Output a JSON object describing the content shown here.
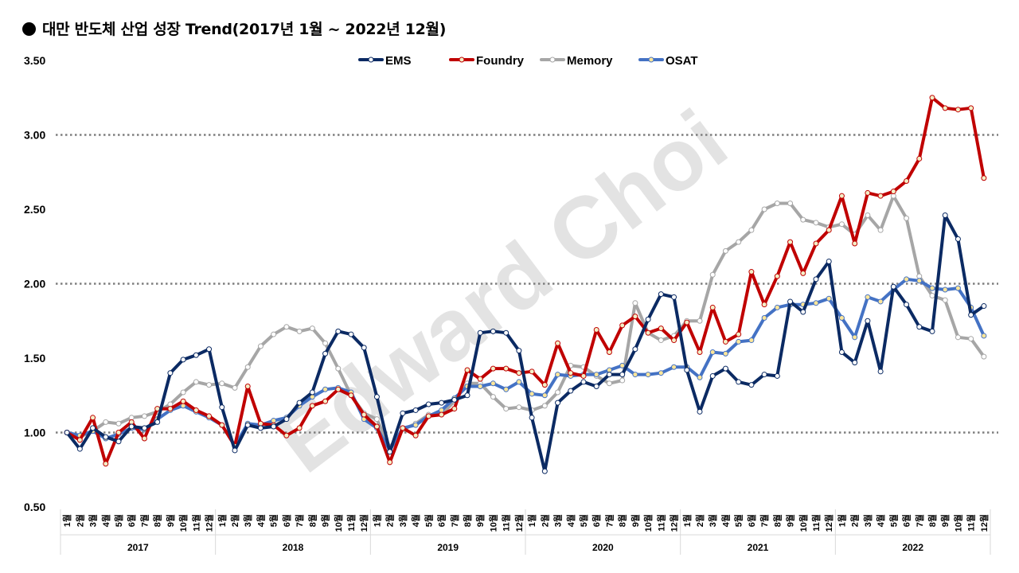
{
  "title": "대만 반도체 산업 성장 Trend(2017년 1월 ~ 2022년 12월)",
  "watermark": "Edward Choi",
  "chart_data": {
    "type": "line",
    "title": "대만 반도체 산업 성장 Trend(2017년 1월 ~ 2022년 12월)",
    "ylim": [
      0.5,
      3.5
    ],
    "yticks": [
      "0.50",
      "1.00",
      "1.50",
      "2.00",
      "2.50",
      "3.00",
      "3.50"
    ],
    "grid": "dotted at 1.00, 2.00, 3.00",
    "legend_position": "top-center",
    "month_unit": "월",
    "months": [
      "1",
      "2",
      "3",
      "4",
      "5",
      "6",
      "7",
      "8",
      "9",
      "10",
      "11",
      "12"
    ],
    "years": [
      "2017",
      "2018",
      "2019",
      "2020",
      "2021",
      "2022"
    ],
    "series": [
      {
        "name": "EMS",
        "color": "#0b2a63",
        "marker": "#ffffff",
        "values": [
          1.0,
          0.89,
          1.03,
          0.97,
          0.94,
          1.04,
          1.03,
          1.07,
          1.4,
          1.49,
          1.52,
          1.56,
          1.17,
          0.88,
          1.05,
          1.03,
          1.04,
          1.09,
          1.2,
          1.27,
          1.53,
          1.68,
          1.66,
          1.57,
          1.24,
          0.87,
          1.13,
          1.15,
          1.19,
          1.2,
          1.22,
          1.25,
          1.67,
          1.68,
          1.67,
          1.55,
          1.1,
          0.74,
          1.2,
          1.28,
          1.34,
          1.31,
          1.39,
          1.39,
          1.56,
          1.76,
          1.93,
          1.91,
          1.42,
          1.14,
          1.38,
          1.43,
          1.34,
          1.32,
          1.39,
          1.38,
          1.88,
          1.81,
          2.03,
          2.15,
          1.54,
          1.47,
          1.75,
          1.41,
          1.98,
          1.86,
          1.71,
          1.68,
          2.46,
          2.3,
          1.79,
          1.85
        ]
      },
      {
        "name": "Foundry",
        "color": "#c00000",
        "marker": "#f3efc8",
        "values": [
          1.0,
          0.95,
          1.1,
          0.79,
          1.0,
          1.07,
          0.96,
          1.16,
          1.16,
          1.21,
          1.15,
          1.11,
          1.05,
          0.91,
          1.31,
          1.06,
          1.05,
          0.98,
          1.03,
          1.18,
          1.21,
          1.29,
          1.25,
          1.12,
          1.04,
          0.8,
          1.03,
          0.98,
          1.11,
          1.12,
          1.16,
          1.42,
          1.36,
          1.43,
          1.43,
          1.4,
          1.41,
          1.32,
          1.6,
          1.4,
          1.38,
          1.69,
          1.54,
          1.72,
          1.78,
          1.67,
          1.7,
          1.62,
          1.74,
          1.54,
          1.84,
          1.61,
          1.66,
          2.08,
          1.86,
          2.05,
          2.28,
          2.07,
          2.27,
          2.36,
          2.59,
          2.27,
          2.61,
          2.59,
          2.62,
          2.69,
          2.84,
          3.25,
          3.18,
          3.17,
          3.18,
          2.71
        ]
      },
      {
        "name": "Memory",
        "color": "#a6a6a6",
        "marker": "#ffffff",
        "values": [
          1.0,
          0.97,
          1.01,
          1.07,
          1.06,
          1.1,
          1.11,
          1.14,
          1.19,
          1.27,
          1.34,
          1.32,
          1.33,
          1.3,
          1.44,
          1.58,
          1.66,
          1.71,
          1.68,
          1.7,
          1.6,
          1.43,
          1.25,
          1.13,
          1.09,
          0.9,
          1.02,
          1.06,
          1.12,
          1.12,
          1.21,
          1.33,
          1.33,
          1.24,
          1.16,
          1.17,
          1.15,
          1.18,
          1.27,
          1.45,
          1.44,
          1.38,
          1.33,
          1.35,
          1.87,
          1.67,
          1.62,
          1.65,
          1.75,
          1.75,
          2.06,
          2.22,
          2.28,
          2.36,
          2.5,
          2.54,
          2.54,
          2.43,
          2.41,
          2.38,
          2.4,
          2.33,
          2.46,
          2.36,
          2.59,
          2.44,
          2.05,
          1.92,
          1.89,
          1.64,
          1.63,
          1.51
        ]
      },
      {
        "name": "OSAT",
        "color": "#4472c4",
        "marker": "#ffe699",
        "values": [
          1.0,
          0.98,
          1.01,
          0.96,
          0.99,
          1.03,
          1.02,
          1.09,
          1.15,
          1.18,
          1.14,
          1.1,
          1.05,
          0.91,
          1.06,
          1.05,
          1.08,
          1.1,
          1.18,
          1.24,
          1.29,
          1.3,
          1.27,
          1.09,
          1.03,
          0.88,
          1.03,
          1.05,
          1.11,
          1.15,
          1.23,
          1.31,
          1.31,
          1.33,
          1.29,
          1.34,
          1.26,
          1.25,
          1.39,
          1.38,
          1.39,
          1.39,
          1.42,
          1.45,
          1.39,
          1.39,
          1.4,
          1.44,
          1.44,
          1.37,
          1.54,
          1.53,
          1.61,
          1.62,
          1.77,
          1.84,
          1.86,
          1.86,
          1.87,
          1.9,
          1.77,
          1.64,
          1.91,
          1.88,
          1.96,
          2.03,
          2.02,
          1.97,
          1.96,
          1.97,
          1.84,
          1.65
        ]
      }
    ]
  }
}
